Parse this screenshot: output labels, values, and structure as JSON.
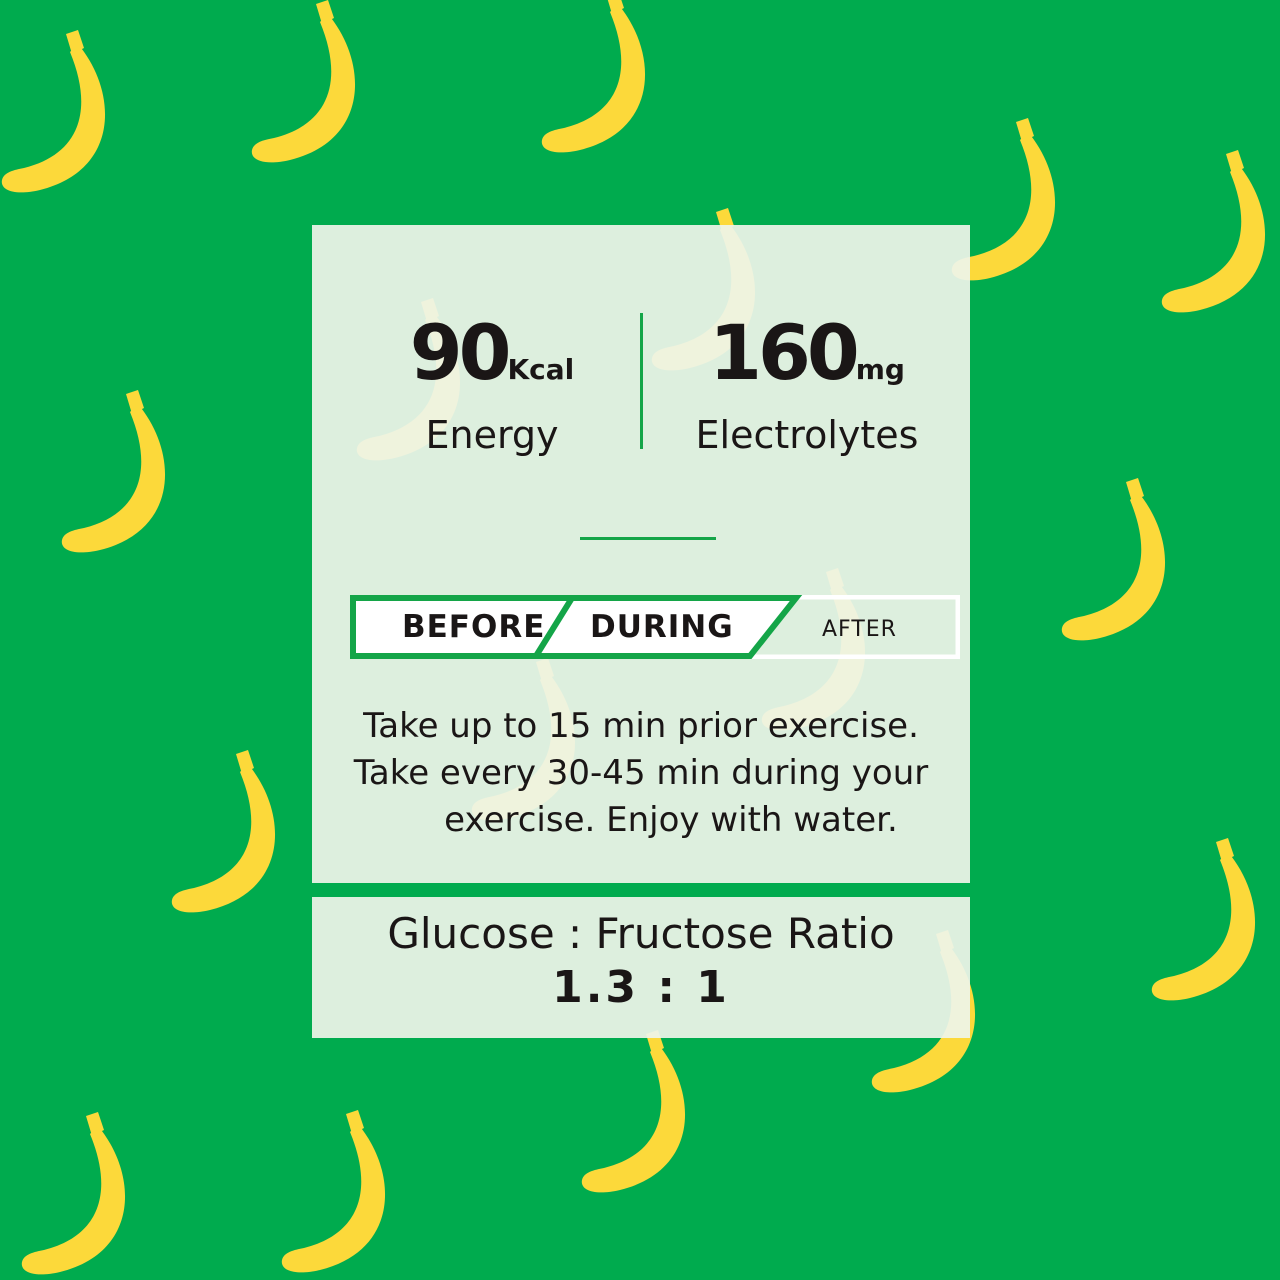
{
  "colors": {
    "background": "#00ab4e",
    "banana": "#fcd93a",
    "card": "#eef4e9",
    "accent": "#14a548"
  },
  "energy": {
    "value": "90",
    "unit": "Kcal",
    "label": "Energy"
  },
  "electrolytes": {
    "value": "160",
    "unit": "mg",
    "label": "Electrolytes"
  },
  "timing": {
    "before": "BEFORE",
    "during": "DURING",
    "after": "AFTER",
    "active": [
      "BEFORE",
      "DURING"
    ]
  },
  "instructions": [
    "Take up to 15 min prior exercise.",
    "Take every 30-45 min during your",
    "exercise. Enjoy with water."
  ],
  "ratio": {
    "title": "Glucose : Fructose Ratio",
    "value": "1.3 : 1"
  }
}
